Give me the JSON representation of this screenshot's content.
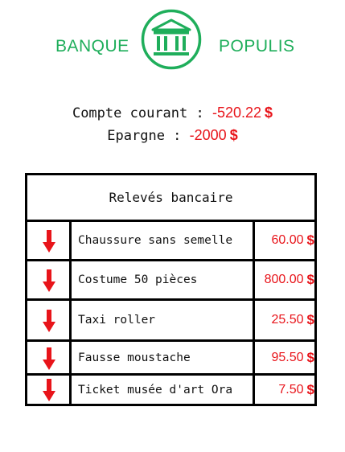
{
  "brand": {
    "left_word": "BANQUE",
    "right_word": "POPULIS",
    "logo_icon": "bank-building-icon",
    "accent_color": "#1fae5b"
  },
  "balances": {
    "current_label": "Compte courant :",
    "current_value": "-520.22",
    "current_currency": "$",
    "savings_label": "Epargne :",
    "savings_value": "-2000",
    "savings_currency": "$",
    "negative_color": "#e8141a"
  },
  "statement": {
    "title": "Relevés bancaire",
    "rows": [
      {
        "icon": "down-arrow-icon",
        "label": "Chaussure sans semelle",
        "amount": "60.00",
        "currency": "$"
      },
      {
        "icon": "down-arrow-icon",
        "label": "Costume 50 pièces",
        "amount": "800.00",
        "currency": "$"
      },
      {
        "icon": "down-arrow-icon",
        "label": "Taxi roller",
        "amount": "25.50",
        "currency": "$"
      },
      {
        "icon": "down-arrow-icon",
        "label": "Fausse moustache",
        "amount": "95.50",
        "currency": "$"
      },
      {
        "icon": "down-arrow-icon",
        "label": "Ticket musée d'art Ora",
        "amount": "7.50",
        "currency": "$"
      }
    ]
  }
}
